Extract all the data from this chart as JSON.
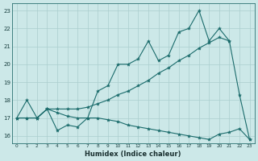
{
  "xlabel": "Humidex (Indice chaleur)",
  "bg_color": "#cce8e8",
  "grid_color": "#aacece",
  "line_color": "#1a6b6b",
  "xlim_min": -0.5,
  "xlim_max": 23.5,
  "ylim_min": 15.6,
  "ylim_max": 23.4,
  "xtick_vals": [
    0,
    1,
    2,
    3,
    4,
    5,
    6,
    7,
    8,
    9,
    10,
    11,
    12,
    13,
    14,
    15,
    16,
    17,
    18,
    19,
    20,
    21,
    22,
    23
  ],
  "ytick_vals": [
    16,
    17,
    18,
    19,
    20,
    21,
    22,
    23
  ],
  "series1_x": [
    0,
    1,
    2,
    3,
    4,
    5,
    6,
    7,
    8,
    9,
    10,
    11,
    12,
    13,
    14,
    15,
    16,
    17,
    18,
    19,
    20,
    21,
    22,
    23
  ],
  "series1_y": [
    17.0,
    18.0,
    17.0,
    17.5,
    16.3,
    16.6,
    16.5,
    17.0,
    18.5,
    18.8,
    20.0,
    20.0,
    20.3,
    21.3,
    20.2,
    20.5,
    21.8,
    22.0,
    23.0,
    21.3,
    22.0,
    21.3,
    18.3,
    15.8
  ],
  "series2_x": [
    0,
    1,
    2,
    3,
    4,
    5,
    6,
    7,
    8,
    9,
    10,
    11,
    12,
    13,
    14,
    15,
    16,
    17,
    18,
    19,
    20,
    21
  ],
  "series2_y": [
    17.0,
    17.0,
    17.0,
    17.5,
    17.5,
    17.5,
    17.5,
    17.6,
    17.8,
    18.0,
    18.3,
    18.5,
    18.8,
    19.1,
    19.5,
    19.8,
    20.2,
    20.5,
    20.9,
    21.2,
    21.5,
    21.3
  ],
  "series3_x": [
    0,
    1,
    2,
    3,
    4,
    5,
    6,
    7,
    8,
    9,
    10,
    11,
    12,
    13,
    14,
    15,
    16,
    17,
    18,
    19,
    20,
    21,
    22,
    23
  ],
  "series3_y": [
    17.0,
    17.0,
    17.0,
    17.5,
    17.3,
    17.1,
    17.0,
    17.0,
    17.0,
    16.9,
    16.8,
    16.6,
    16.5,
    16.4,
    16.3,
    16.2,
    16.1,
    16.0,
    15.9,
    15.8,
    16.1,
    16.2,
    16.4,
    15.8
  ]
}
